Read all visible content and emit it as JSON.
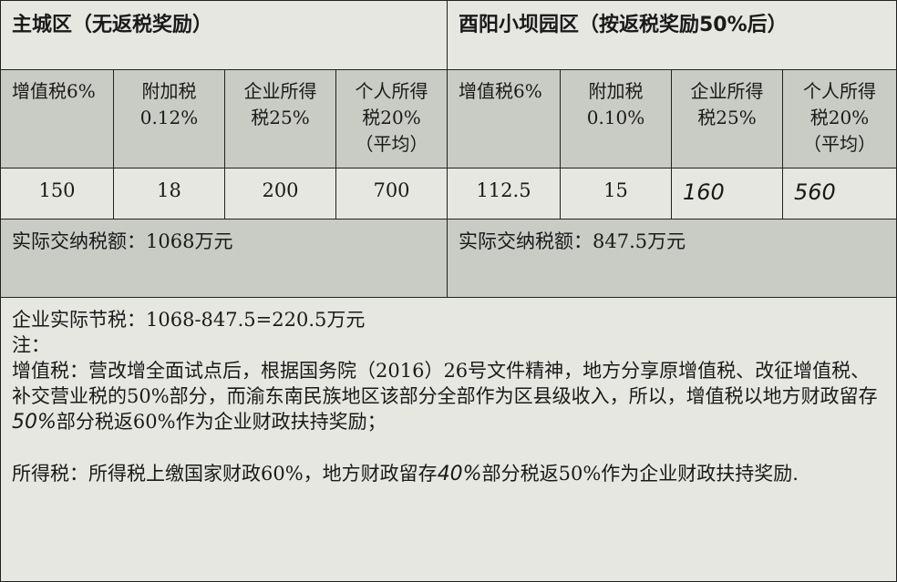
{
  "left_zone": {
    "title": "主城区（无返税奖励）",
    "headers": [
      "增值税6%",
      "附加税\n0.12%",
      "企业所得\n税25%",
      "个人所得\n税20%\n（平均）"
    ],
    "values": [
      "150",
      "18",
      "200",
      "700"
    ],
    "total": "实际交纳税额：1068万元"
  },
  "right_zone": {
    "title": "酉阳小坝园区（按返税奖励50%后）",
    "headers": [
      "增值税6%",
      "附加税\n0.10%",
      "企业所得\n税25%",
      "个人所得\n税20%\n（平均）"
    ],
    "values": [
      "112.5",
      "15",
      "160",
      "560"
    ],
    "total": "实际交纳税额：847.5万元"
  },
  "notes": {
    "saving": "企业实际节税：1068-847.5=220.5万元",
    "note_label": "注：",
    "vat_text_before": "增值税：营改增全面试点后，根据国务院（2016）26号文件精神，地方分享原增值税、改征增值税、补交营业税的50%部分，而渝东南民族地区该部分全部作为区县级收入，所以，增值税以地方财政留存",
    "vat_pct": "50%",
    "vat_text_after": "部分税返60%作为企业财政扶持奖励；",
    "income_text_before": "所得税：所得税上缴国家财政60%，地方财政留存",
    "income_pct": "40%",
    "income_text_after": "部分税返50%作为企业财政扶持奖励."
  }
}
